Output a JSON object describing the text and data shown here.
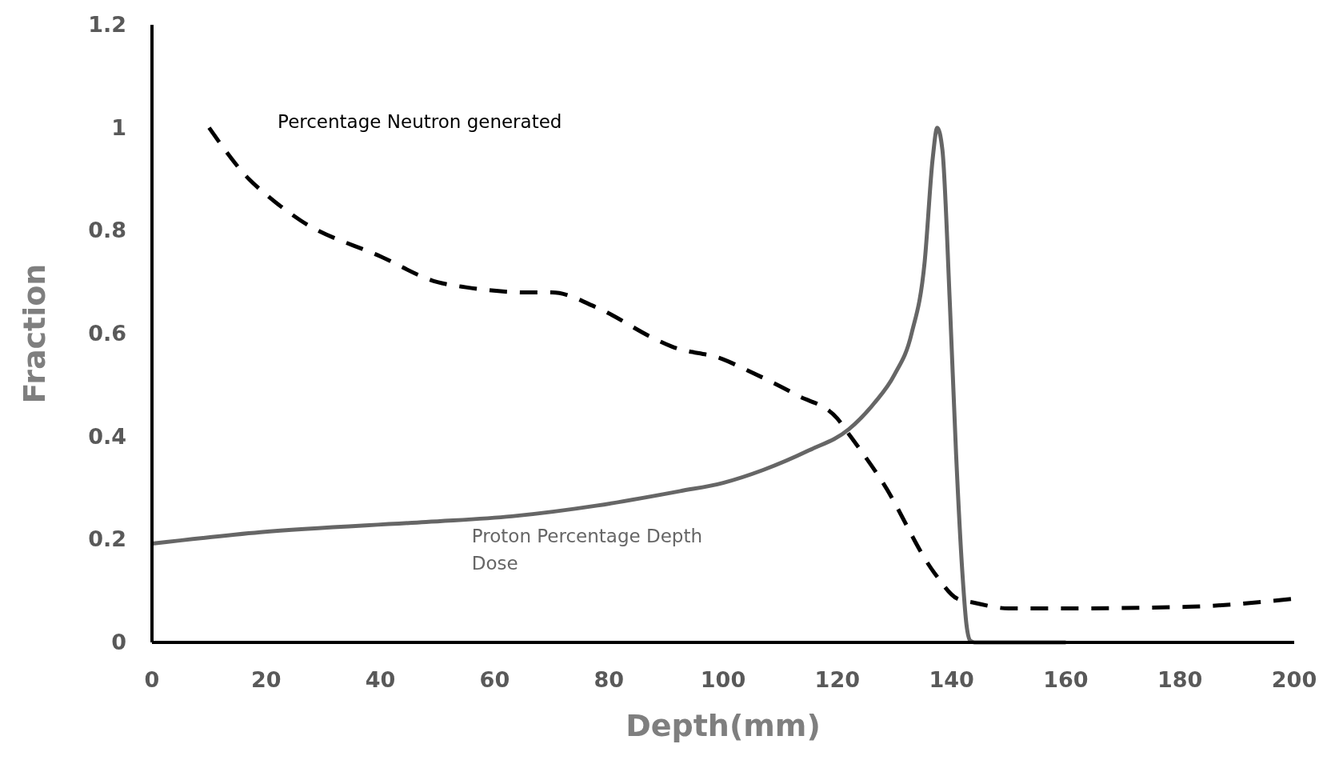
{
  "chart_data": {
    "type": "line",
    "xlabel": "Depth(mm)",
    "ylabel": "Fraction",
    "xlim": [
      0,
      200
    ],
    "ylim": [
      0,
      1.2
    ],
    "xticks": [
      0,
      20,
      40,
      60,
      80,
      100,
      120,
      140,
      160,
      180,
      200
    ],
    "yticks": [
      0,
      0.2,
      0.4,
      0.6,
      0.8,
      1,
      1.2
    ],
    "grid": false,
    "legend": false,
    "series": [
      {
        "name": "Percentage Neutron generated",
        "color": "#000000",
        "line_style": "dashed",
        "x": [
          10,
          17,
          20,
          26,
          40,
          50,
          55,
          66,
          70,
          78,
          88,
          91,
          100,
          104,
          113,
          120,
          122,
          128,
          137,
          141,
          144,
          150,
          160,
          181,
          200
        ],
        "values": [
          1.0,
          0.9,
          0.87,
          0.82,
          0.75,
          0.7,
          0.69,
          0.68,
          0.68,
          0.65,
          0.59,
          0.575,
          0.55,
          0.53,
          0.48,
          0.435,
          0.405,
          0.31,
          0.135,
          0.085,
          0.077,
          0.066,
          0.066,
          0.069,
          0.085
        ]
      },
      {
        "name": "Proton Percentage Depth Dose",
        "color": "#666666",
        "line_style": "solid",
        "x": [
          0,
          19,
          48,
          63,
          78,
          92.5,
          100,
          107,
          115,
          122,
          126.4,
          130,
          133,
          135.3,
          136.7,
          137.5,
          138.4,
          139.7,
          140.8,
          141.9,
          142.6,
          143.3,
          144,
          160
        ],
        "values": [
          0.192,
          0.214,
          0.234,
          0.245,
          0.266,
          0.294,
          0.31,
          0.335,
          0.373,
          0.414,
          0.464,
          0.52,
          0.6,
          0.74,
          0.94,
          1.0,
          0.957,
          0.66,
          0.365,
          0.135,
          0.036,
          0.003,
          0,
          0
        ]
      }
    ]
  }
}
